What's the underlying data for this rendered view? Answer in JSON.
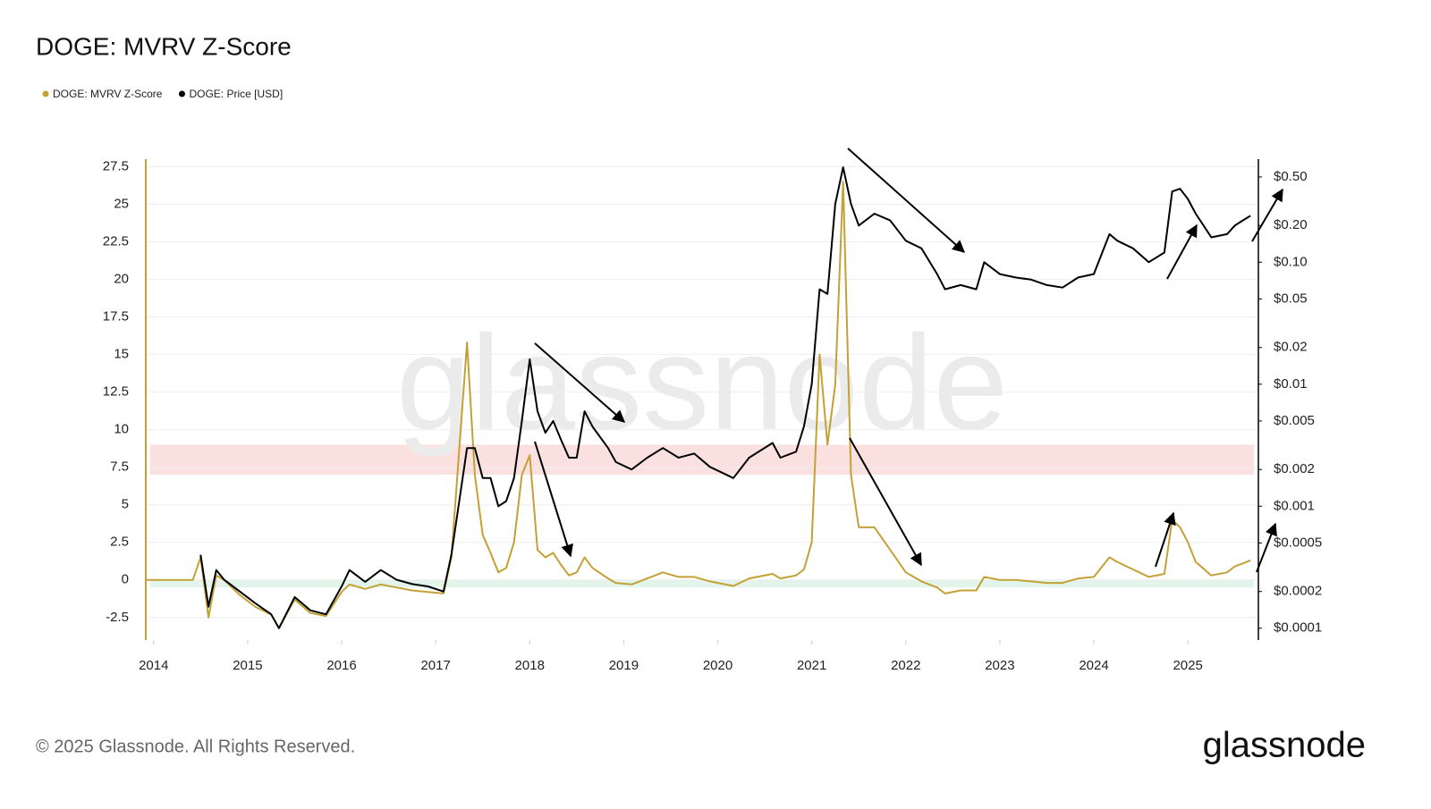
{
  "chart_data": {
    "type": "line",
    "title": "DOGE: MVRV Z-Score",
    "watermark": "glassnode",
    "footer": "© 2025 Glassnode. All Rights Reserved.",
    "brand": "glassnode",
    "x": [
      "2013-12",
      "2014-01",
      "2014-03",
      "2014-06",
      "2014-07",
      "2014-08",
      "2014-09",
      "2014-10",
      "2014-12",
      "2015-02",
      "2015-04",
      "2015-05",
      "2015-07",
      "2015-09",
      "2015-11",
      "2016-01",
      "2016-02",
      "2016-04",
      "2016-06",
      "2016-08",
      "2016-10",
      "2016-12",
      "2017-02",
      "2017-03",
      "2017-05",
      "2017-06",
      "2017-07",
      "2017-08",
      "2017-09",
      "2017-10",
      "2017-11",
      "2017-12",
      "2018-01",
      "2018-02",
      "2018-03",
      "2018-04",
      "2018-05",
      "2018-06",
      "2018-07",
      "2018-08",
      "2018-09",
      "2018-11",
      "2018-12",
      "2019-02",
      "2019-04",
      "2019-06",
      "2019-08",
      "2019-10",
      "2019-12",
      "2020-03",
      "2020-05",
      "2020-08",
      "2020-09",
      "2020-11",
      "2020-12",
      "2021-01",
      "2021-02",
      "2021-03",
      "2021-04",
      "2021-05",
      "2021-06",
      "2021-07",
      "2021-09",
      "2021-11",
      "2022-01",
      "2022-03",
      "2022-05",
      "2022-06",
      "2022-08",
      "2022-10",
      "2022-11",
      "2023-01",
      "2023-03",
      "2023-05",
      "2023-07",
      "2023-09",
      "2023-11",
      "2024-01",
      "2024-03",
      "2024-04",
      "2024-06",
      "2024-08",
      "2024-10",
      "2024-11",
      "2024-12",
      "2025-01",
      "2025-02",
      "2025-04",
      "2025-06",
      "2025-07",
      "2025-08",
      "2025-09"
    ],
    "series": [
      {
        "name": "DOGE: MVRV Z-Score",
        "color": "#c4a136",
        "axis": "y",
        "values": [
          0,
          0,
          0,
          0,
          1.5,
          -2.5,
          0.3,
          0.0,
          -1,
          -1.8,
          -2.3,
          -3.2,
          -1.3,
          -2.2,
          -2.4,
          -0.8,
          -0.3,
          -0.6,
          -0.3,
          -0.5,
          -0.7,
          -0.8,
          -0.9,
          1.5,
          15.8,
          7,
          3,
          1.8,
          0.5,
          0.8,
          2.5,
          7,
          8.3,
          2,
          1.5,
          1.8,
          1,
          0.3,
          0.5,
          1.5,
          0.8,
          0.1,
          -0.2,
          -0.3,
          0.1,
          0.5,
          0.2,
          0.2,
          -0.1,
          -0.4,
          0.1,
          0.4,
          0.1,
          0.3,
          0.7,
          2.5,
          15,
          9,
          13,
          26.5,
          7,
          3.5,
          3.5,
          2,
          0.5,
          -0.1,
          -0.5,
          -0.9,
          -0.7,
          -0.7,
          0.2,
          0.0,
          0.0,
          -0.1,
          -0.2,
          -0.2,
          0.1,
          0.2,
          1.5,
          1.2,
          0.7,
          0.2,
          0.4,
          4.0,
          3.5,
          2.5,
          1.2,
          0.3,
          0.5,
          0.9,
          1.1,
          1.3
        ]
      },
      {
        "name": "DOGE: Price [USD]",
        "color": "#000000",
        "axis": "y2",
        "values": [
          null,
          null,
          null,
          null,
          0.0004,
          0.00015,
          0.0003,
          0.00025,
          0.0002,
          0.00016,
          0.00013,
          0.0001,
          0.00018,
          0.00014,
          0.00013,
          0.00022,
          0.0003,
          0.00024,
          0.0003,
          0.00025,
          0.00023,
          0.00022,
          0.0002,
          0.0004,
          0.003,
          0.003,
          0.0017,
          0.0017,
          0.001,
          0.0011,
          0.0017,
          0.005,
          0.016,
          0.006,
          0.004,
          0.005,
          0.0035,
          0.0025,
          0.0025,
          0.006,
          0.0045,
          0.003,
          0.0023,
          0.002,
          0.0025,
          0.003,
          0.0025,
          0.0027,
          0.0021,
          0.0017,
          0.0025,
          0.0033,
          0.0025,
          0.0028,
          0.0045,
          0.01,
          0.06,
          0.055,
          0.3,
          0.6,
          0.3,
          0.2,
          0.25,
          0.22,
          0.15,
          0.13,
          0.08,
          0.06,
          0.065,
          0.06,
          0.1,
          0.08,
          0.075,
          0.072,
          0.065,
          0.062,
          0.075,
          0.08,
          0.17,
          0.15,
          0.13,
          0.1,
          0.12,
          0.38,
          0.4,
          0.33,
          0.25,
          0.16,
          0.17,
          0.2,
          0.22,
          0.24
        ]
      }
    ],
    "xlim": [
      "2013-12",
      "2025-10"
    ],
    "xticks": [
      "2014",
      "2015",
      "2016",
      "2017",
      "2018",
      "2019",
      "2020",
      "2021",
      "2022",
      "2023",
      "2024",
      "2025"
    ],
    "ylim": [
      -4,
      28
    ],
    "yticks": [
      -2.5,
      0,
      2.5,
      5,
      7.5,
      10,
      12.5,
      15,
      17.5,
      20,
      22.5,
      25,
      27.5
    ],
    "y2lim": [
      8e-05,
      0.7
    ],
    "y2log": true,
    "y2ticks": [
      {
        "value": 0.0001,
        "label": "$0.0001"
      },
      {
        "value": 0.0002,
        "label": "$0.0002"
      },
      {
        "value": 0.0005,
        "label": "$0.0005"
      },
      {
        "value": 0.001,
        "label": "$0.001"
      },
      {
        "value": 0.002,
        "label": "$0.002"
      },
      {
        "value": 0.005,
        "label": "$0.005"
      },
      {
        "value": 0.01,
        "label": "$0.01"
      },
      {
        "value": 0.02,
        "label": "$0.02"
      },
      {
        "value": 0.05,
        "label": "$0.05"
      },
      {
        "value": 0.1,
        "label": "$0.10"
      },
      {
        "value": 0.2,
        "label": "$0.20"
      },
      {
        "value": 0.5,
        "label": "$0.50"
      }
    ],
    "grid": true,
    "legend": "top-left",
    "bands": [
      {
        "from": 7,
        "to": 9,
        "color": "#fbe0e0"
      },
      {
        "from": -0.5,
        "to": 0,
        "color": "#e3f4ea"
      }
    ]
  }
}
